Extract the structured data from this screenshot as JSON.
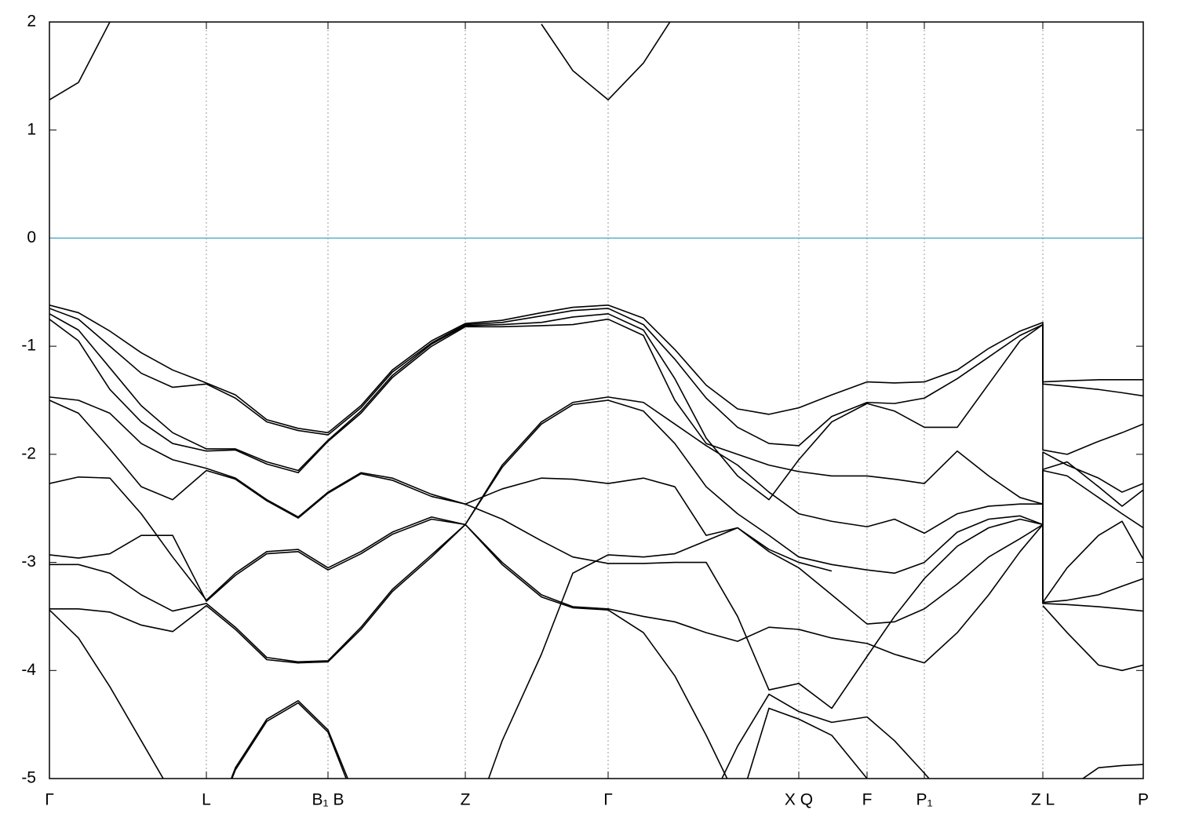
{
  "chart_data": {
    "type": "line",
    "x": [
      0,
      0.37,
      0.77,
      1.17,
      1.57,
      2.0,
      2.37,
      2.77,
      3.17,
      3.55,
      3.97,
      4.37,
      4.87,
      5.3,
      5.77,
      6.27,
      6.67,
      7.12,
      7.57,
      7.97,
      8.37,
      8.77,
      9.17,
      9.55,
      9.97,
      10.42,
      10.77,
      11.15,
      11.57,
      11.97,
      12.37,
      12.66,
      12.66,
      12.97,
      13.37,
      13.67,
      13.94
    ],
    "xlim": [
      0,
      13.94
    ],
    "ylim": [
      -5,
      2
    ],
    "yticks": [
      2,
      1,
      0,
      -1,
      -2,
      -3,
      -4,
      -5
    ],
    "xticks": [
      {
        "value": 0,
        "label": "Γ"
      },
      {
        "value": 2.0,
        "label": "L"
      },
      {
        "value": 3.55,
        "label": "B₁ B"
      },
      {
        "value": 5.3,
        "label": "Z"
      },
      {
        "value": 7.12,
        "label": "Γ"
      },
      {
        "value": 9.55,
        "label": "X Q"
      },
      {
        "value": 10.42,
        "label": "F"
      },
      {
        "value": 11.15,
        "label": "P₁"
      },
      {
        "value": 12.66,
        "label": "Z L"
      },
      {
        "value": 13.94,
        "label": "P"
      }
    ],
    "xgrid": true,
    "reference_line": 0,
    "reference_color": "#5aaec8",
    "series": [
      {
        "color": "#000000",
        "values": [
          1.28,
          1.44,
          2.0,
          2.7,
          null,
          null,
          null,
          null,
          null,
          null,
          null,
          null,
          null,
          null,
          null,
          1.98,
          1.55,
          1.28,
          1.62,
          2.07,
          null,
          null,
          null,
          null,
          null,
          null,
          null,
          null,
          null,
          null,
          null,
          null,
          null,
          null,
          null,
          null,
          null
        ]
      },
      {
        "color": "#000000",
        "values": [
          -0.62,
          -0.69,
          -0.86,
          -1.06,
          -1.22,
          -1.34,
          -1.45,
          -1.68,
          -1.76,
          -1.8,
          -1.55,
          -1.22,
          -0.95,
          -0.79,
          -0.76,
          -0.69,
          -0.64,
          -0.62,
          -0.74,
          -1.03,
          -1.36,
          -1.58,
          -1.63,
          -1.57,
          -1.45,
          -1.33,
          -1.34,
          -1.33,
          -1.22,
          -1.02,
          -0.86,
          -0.78,
          -1.33,
          -1.32,
          -1.31,
          -1.31,
          -1.31
        ]
      },
      {
        "color": "#000000",
        "values": [
          -0.65,
          -0.75,
          -1.0,
          -1.25,
          -1.38,
          -1.35,
          -1.48,
          -1.7,
          -1.78,
          -1.82,
          -1.57,
          -1.24,
          -0.97,
          -0.8,
          -0.78,
          -0.72,
          -0.67,
          -0.65,
          -0.8,
          -1.12,
          -1.48,
          -1.75,
          -1.9,
          -1.92,
          -1.65,
          -1.52,
          -1.53,
          -1.48,
          -1.3,
          -1.1,
          -0.9,
          -0.8,
          -1.35,
          -1.37,
          -1.4,
          -1.43,
          -1.46
        ]
      },
      {
        "color": "#000000",
        "values": [
          -0.7,
          -0.85,
          -1.2,
          -1.55,
          -1.8,
          -1.95,
          -1.95,
          -2.07,
          -2.15,
          -1.87,
          -1.6,
          -1.27,
          -0.98,
          -0.81,
          -0.8,
          -0.78,
          -0.73,
          -0.7,
          -0.85,
          -1.3,
          -1.85,
          -2.2,
          -2.42,
          -2.05,
          -1.7,
          -1.53,
          -1.6,
          -1.75,
          -1.75,
          -1.35,
          -0.95,
          -0.8,
          -1.96,
          -2.0,
          -1.88,
          -1.8,
          -1.72
        ]
      },
      {
        "color": "#000000",
        "values": [
          -0.75,
          -0.95,
          -1.4,
          -1.7,
          -1.9,
          -1.97,
          -1.96,
          -2.09,
          -2.17,
          -1.88,
          -1.62,
          -1.29,
          -1.0,
          -0.82,
          -0.82,
          -0.81,
          -0.8,
          -0.75,
          -0.9,
          -1.5,
          -1.9,
          -2.0,
          -2.1,
          -2.16,
          -2.2,
          -2.2,
          -2.23,
          -2.27,
          -1.97,
          -2.2,
          -2.4,
          -2.46,
          -1.98,
          -2.1,
          -2.22,
          -2.35,
          -2.27
        ]
      },
      {
        "color": "#000000",
        "values": [
          -1.47,
          -1.5,
          -1.62,
          -1.9,
          -2.05,
          -2.13,
          -2.22,
          -2.42,
          -2.58,
          -2.35,
          -2.17,
          -2.22,
          -2.37,
          -2.46,
          -2.32,
          -2.22,
          -2.23,
          -2.27,
          -2.22,
          -2.3,
          -2.75,
          -2.68,
          -2.9,
          -3.05,
          -3.3,
          -3.57,
          -3.55,
          -3.43,
          -3.2,
          -2.95,
          -2.78,
          -2.65,
          -2.14,
          -2.07,
          -2.3,
          -2.48,
          -2.33
        ]
      },
      {
        "color": "#000000",
        "values": [
          -1.5,
          -1.62,
          -1.95,
          -2.3,
          -2.42,
          -2.15,
          -2.23,
          -2.43,
          -2.59,
          -2.36,
          -2.18,
          -2.24,
          -2.39,
          -2.46,
          -2.6,
          -2.8,
          -2.95,
          -3.01,
          -3.01,
          -3.0,
          -3.0,
          -3.5,
          -4.18,
          -4.12,
          -4.35,
          -3.87,
          -3.5,
          -3.15,
          -2.85,
          -2.68,
          -2.6,
          -2.65,
          -2.15,
          -2.2,
          -2.4,
          -2.55,
          -2.68
        ]
      },
      {
        "color": "#000000",
        "values": [
          -2.27,
          -2.21,
          -2.22,
          -2.55,
          -2.95,
          -3.35,
          -3.1,
          -2.9,
          -2.88,
          -3.05,
          -2.9,
          -2.72,
          -2.58,
          -2.65,
          -2.1,
          -1.7,
          -1.52,
          -1.47,
          -1.52,
          -1.72,
          -1.92,
          -2.1,
          -2.35,
          -2.55,
          -2.62,
          -2.67,
          -2.6,
          -2.73,
          -2.55,
          -2.48,
          -2.46,
          -2.46,
          -3.37,
          -3.05,
          -2.75,
          -2.62,
          -2.97
        ]
      },
      {
        "color": "#000000",
        "values": [
          -2.93,
          -2.96,
          -2.92,
          -2.75,
          -2.75,
          -3.36,
          -3.12,
          -2.92,
          -2.9,
          -3.07,
          -2.92,
          -2.74,
          -2.6,
          -2.65,
          -2.12,
          -1.72,
          -1.54,
          -1.5,
          -1.6,
          -1.9,
          -2.3,
          -2.55,
          -2.75,
          -2.95,
          -3.02,
          -3.07,
          -3.1,
          -3.0,
          -2.72,
          -2.6,
          -2.57,
          -2.65,
          -3.37,
          -3.35,
          -3.3,
          -3.22,
          -3.15
        ]
      },
      {
        "color": "#000000",
        "values": [
          -3.02,
          -3.02,
          -3.1,
          -3.3,
          -3.45,
          -3.38,
          -3.6,
          -3.88,
          -3.92,
          -3.91,
          -3.6,
          -3.25,
          -2.93,
          -2.65,
          -3.0,
          -3.3,
          -3.41,
          -3.43,
          -3.5,
          -3.55,
          -3.65,
          -3.73,
          -3.6,
          -3.62,
          -3.7,
          -3.75,
          -3.85,
          -3.93,
          -3.65,
          -3.3,
          -2.9,
          -2.65,
          -3.38,
          -3.39,
          -3.41,
          -3.43,
          -3.45
        ]
      },
      {
        "color": "#000000",
        "values": [
          -3.43,
          -3.43,
          -3.46,
          -3.58,
          -3.64,
          -3.4,
          -3.62,
          -3.9,
          -3.93,
          -3.92,
          -3.62,
          -3.27,
          -2.95,
          -2.65,
          -3.02,
          -3.32,
          -3.42,
          -3.44,
          -3.65,
          -4.05,
          -4.6,
          -5.2,
          null,
          null,
          null,
          null,
          null,
          null,
          null,
          null,
          null,
          null,
          -3.4,
          -3.65,
          -3.95,
          -4.0,
          -3.95
        ]
      },
      {
        "color": "#000000",
        "values": [
          -3.44,
          -3.7,
          -4.15,
          -4.65,
          -5.15,
          -5.6,
          -4.9,
          -4.45,
          -4.28,
          -4.55,
          -5.3,
          null,
          null,
          -5.6,
          -4.65,
          -3.85,
          -3.1,
          -2.93,
          -2.95,
          -2.92,
          -2.8,
          -2.68,
          -2.88,
          -3.0,
          -3.08,
          null,
          null,
          null,
          null,
          null,
          null,
          null,
          null,
          null,
          null,
          null,
          null
        ]
      },
      {
        "color": "#000000",
        "values": [
          null,
          null,
          null,
          null,
          null,
          -5.6,
          -4.92,
          -4.47,
          -4.3,
          -4.57,
          -5.35,
          null,
          null,
          null,
          null,
          null,
          null,
          null,
          null,
          null,
          -5.3,
          -4.7,
          -4.22,
          -4.38,
          -4.48,
          -4.43,
          -4.65,
          -4.95,
          -5.3,
          null,
          null,
          null,
          null,
          -5.1,
          -4.9,
          -4.88,
          -4.87
        ]
      },
      {
        "color": "#000000",
        "values": [
          null,
          null,
          null,
          null,
          null,
          null,
          null,
          null,
          null,
          null,
          null,
          null,
          null,
          null,
          null,
          null,
          null,
          null,
          null,
          null,
          null,
          -5.3,
          -4.35,
          -4.45,
          -4.6,
          -5.0,
          null,
          null,
          null,
          null,
          null,
          null,
          null,
          null,
          null,
          null,
          null
        ]
      }
    ]
  }
}
